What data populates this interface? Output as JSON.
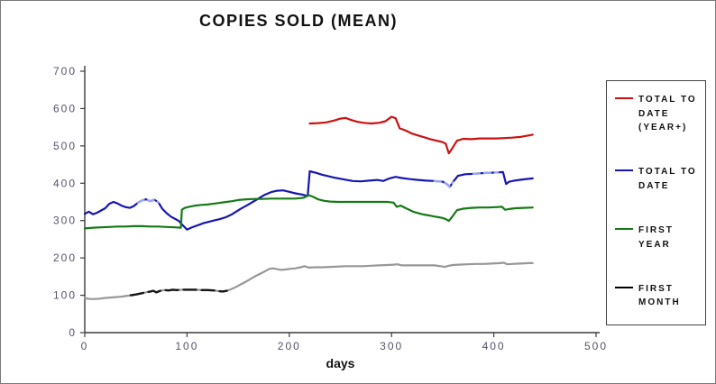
{
  "chart_data": {
    "type": "line",
    "title": "COPIES SOLD (MEAN)",
    "xlabel": "days",
    "ylabel": "",
    "xlim": [
      0,
      500
    ],
    "ylim": [
      0,
      700
    ],
    "xticks": [
      0,
      100,
      200,
      300,
      400,
      500
    ],
    "yticks": [
      0,
      100,
      200,
      300,
      400,
      500,
      600,
      700
    ],
    "grid": false,
    "legend_position": "right",
    "axis_color": "#3c3c3c",
    "tick_label_color": "#53536e",
    "series": [
      {
        "name": "TOTAL TO DATE (YEAR+)",
        "color": "#cc1111",
        "points": [
          [
            220,
            560
          ],
          [
            228,
            561
          ],
          [
            236,
            563
          ],
          [
            244,
            568
          ],
          [
            250,
            573
          ],
          [
            255,
            575
          ],
          [
            260,
            570
          ],
          [
            266,
            565
          ],
          [
            272,
            562
          ],
          [
            280,
            560
          ],
          [
            288,
            562
          ],
          [
            294,
            566
          ],
          [
            300,
            578
          ],
          [
            304,
            574
          ],
          [
            308,
            547
          ],
          [
            314,
            541
          ],
          [
            320,
            533
          ],
          [
            326,
            528
          ],
          [
            332,
            523
          ],
          [
            338,
            518
          ],
          [
            344,
            514
          ],
          [
            350,
            510
          ],
          [
            353,
            506
          ],
          [
            356,
            480
          ],
          [
            359,
            492
          ],
          [
            364,
            514
          ],
          [
            370,
            519
          ],
          [
            378,
            518
          ],
          [
            386,
            520
          ],
          [
            394,
            520
          ],
          [
            402,
            520
          ],
          [
            410,
            521
          ],
          [
            418,
            522
          ],
          [
            426,
            524
          ],
          [
            432,
            527
          ],
          [
            438,
            530
          ]
        ]
      },
      {
        "name": "TOTAL TO DATE",
        "color": "#1616b0",
        "points": [
          [
            0,
            318
          ],
          [
            4,
            324
          ],
          [
            8,
            317
          ],
          [
            12,
            321
          ],
          [
            16,
            327
          ],
          [
            20,
            333
          ],
          [
            24,
            345
          ],
          [
            28,
            350
          ],
          [
            32,
            346
          ],
          [
            36,
            340
          ],
          [
            40,
            336
          ],
          [
            44,
            334
          ],
          [
            48,
            339
          ],
          [
            52,
            348
          ],
          [
            56,
            354
          ],
          [
            60,
            357
          ],
          [
            64,
            352
          ],
          [
            68,
            356
          ],
          [
            72,
            349
          ],
          [
            76,
            331
          ],
          [
            80,
            320
          ],
          [
            84,
            311
          ],
          [
            88,
            305
          ],
          [
            92,
            299
          ],
          [
            96,
            287
          ],
          [
            100,
            276
          ],
          [
            104,
            281
          ],
          [
            108,
            285
          ],
          [
            112,
            289
          ],
          [
            116,
            293
          ],
          [
            120,
            296
          ],
          [
            126,
            300
          ],
          [
            132,
            304
          ],
          [
            138,
            309
          ],
          [
            144,
            317
          ],
          [
            152,
            331
          ],
          [
            160,
            343
          ],
          [
            168,
            356
          ],
          [
            176,
            369
          ],
          [
            182,
            376
          ],
          [
            188,
            380
          ],
          [
            194,
            381
          ],
          [
            200,
            377
          ],
          [
            206,
            373
          ],
          [
            212,
            370
          ],
          [
            218,
            366
          ],
          [
            220,
            432
          ],
          [
            226,
            428
          ],
          [
            232,
            423
          ],
          [
            238,
            419
          ],
          [
            244,
            415
          ],
          [
            250,
            412
          ],
          [
            256,
            409
          ],
          [
            262,
            406
          ],
          [
            270,
            405
          ],
          [
            278,
            407
          ],
          [
            286,
            409
          ],
          [
            292,
            406
          ],
          [
            298,
            413
          ],
          [
            304,
            417
          ],
          [
            310,
            414
          ],
          [
            318,
            411
          ],
          [
            326,
            409
          ],
          [
            334,
            407
          ],
          [
            342,
            406
          ],
          [
            350,
            404
          ],
          [
            354,
            398
          ],
          [
            357,
            390
          ],
          [
            360,
            403
          ],
          [
            365,
            420
          ],
          [
            372,
            424
          ],
          [
            380,
            425
          ],
          [
            388,
            427
          ],
          [
            396,
            428
          ],
          [
            404,
            429
          ],
          [
            409,
            430
          ],
          [
            412,
            398
          ],
          [
            415,
            404
          ],
          [
            420,
            407
          ],
          [
            428,
            410
          ],
          [
            438,
            413
          ]
        ],
        "overlays": [
          {
            "from": 50,
            "to": 74,
            "color": "#97a6ea",
            "dash": "7 5"
          },
          {
            "from": 336,
            "to": 360,
            "color": "#97a6ea",
            "dash": "7 5"
          },
          {
            "from": 380,
            "to": 406,
            "color": "#97a6ea",
            "dash": "7 5"
          }
        ]
      },
      {
        "name": "FIRST YEAR",
        "color": "#167a16",
        "points": [
          [
            0,
            279
          ],
          [
            8,
            281
          ],
          [
            16,
            282
          ],
          [
            24,
            283
          ],
          [
            32,
            284
          ],
          [
            40,
            284
          ],
          [
            48,
            285
          ],
          [
            56,
            285
          ],
          [
            64,
            284
          ],
          [
            72,
            284
          ],
          [
            80,
            283
          ],
          [
            88,
            282
          ],
          [
            94,
            281
          ],
          [
            95,
            329
          ],
          [
            98,
            334
          ],
          [
            102,
            337
          ],
          [
            108,
            340
          ],
          [
            114,
            342
          ],
          [
            120,
            343
          ],
          [
            128,
            346
          ],
          [
            136,
            349
          ],
          [
            144,
            352
          ],
          [
            150,
            355
          ],
          [
            158,
            357
          ],
          [
            166,
            358
          ],
          [
            174,
            358
          ],
          [
            182,
            359
          ],
          [
            190,
            359
          ],
          [
            198,
            359
          ],
          [
            206,
            359
          ],
          [
            214,
            361
          ],
          [
            219,
            368
          ],
          [
            224,
            363
          ],
          [
            228,
            357
          ],
          [
            234,
            353
          ],
          [
            240,
            351
          ],
          [
            248,
            350
          ],
          [
            256,
            350
          ],
          [
            264,
            350
          ],
          [
            272,
            350
          ],
          [
            280,
            350
          ],
          [
            288,
            350
          ],
          [
            296,
            350
          ],
          [
            302,
            348
          ],
          [
            305,
            337
          ],
          [
            309,
            340
          ],
          [
            314,
            333
          ],
          [
            318,
            328
          ],
          [
            322,
            323
          ],
          [
            326,
            320
          ],
          [
            330,
            317
          ],
          [
            334,
            315
          ],
          [
            338,
            313
          ],
          [
            342,
            311
          ],
          [
            346,
            309
          ],
          [
            350,
            307
          ],
          [
            353,
            304
          ],
          [
            356,
            299
          ],
          [
            359,
            309
          ],
          [
            364,
            328
          ],
          [
            370,
            332
          ],
          [
            378,
            334
          ],
          [
            386,
            335
          ],
          [
            394,
            335
          ],
          [
            402,
            336
          ],
          [
            408,
            337
          ],
          [
            411,
            329
          ],
          [
            415,
            331
          ],
          [
            421,
            333
          ],
          [
            429,
            334
          ],
          [
            438,
            335
          ]
        ]
      },
      {
        "name": "FIRST MONTH",
        "color": "#979797",
        "legend_color": "#000000",
        "points": [
          [
            0,
            92
          ],
          [
            5,
            90
          ],
          [
            10,
            90
          ],
          [
            15,
            91
          ],
          [
            20,
            93
          ],
          [
            25,
            94
          ],
          [
            30,
            95
          ],
          [
            35,
            96
          ],
          [
            40,
            98
          ],
          [
            45,
            100
          ],
          [
            50,
            102
          ],
          [
            55,
            105
          ],
          [
            60,
            108
          ],
          [
            64,
            110
          ],
          [
            67,
            112
          ],
          [
            70,
            108
          ],
          [
            74,
            112
          ],
          [
            78,
            114
          ],
          [
            82,
            113
          ],
          [
            86,
            115
          ],
          [
            90,
            114
          ],
          [
            96,
            115
          ],
          [
            102,
            115
          ],
          [
            108,
            115
          ],
          [
            114,
            114
          ],
          [
            120,
            114
          ],
          [
            126,
            113
          ],
          [
            131,
            111
          ],
          [
            135,
            110
          ],
          [
            139,
            112
          ],
          [
            143,
            116
          ],
          [
            147,
            121
          ],
          [
            151,
            127
          ],
          [
            156,
            134
          ],
          [
            161,
            142
          ],
          [
            166,
            150
          ],
          [
            171,
            157
          ],
          [
            176,
            164
          ],
          [
            180,
            170
          ],
          [
            184,
            172
          ],
          [
            188,
            170
          ],
          [
            192,
            168
          ],
          [
            196,
            169
          ],
          [
            201,
            171
          ],
          [
            206,
            172
          ],
          [
            211,
            175
          ],
          [
            215,
            178
          ],
          [
            219,
            174
          ],
          [
            225,
            175
          ],
          [
            232,
            175
          ],
          [
            240,
            176
          ],
          [
            248,
            177
          ],
          [
            256,
            178
          ],
          [
            264,
            178
          ],
          [
            272,
            178
          ],
          [
            280,
            179
          ],
          [
            288,
            180
          ],
          [
            296,
            181
          ],
          [
            302,
            182
          ],
          [
            306,
            183
          ],
          [
            310,
            180
          ],
          [
            318,
            180
          ],
          [
            326,
            180
          ],
          [
            334,
            180
          ],
          [
            342,
            180
          ],
          [
            348,
            178
          ],
          [
            352,
            176
          ],
          [
            356,
            179
          ],
          [
            360,
            181
          ],
          [
            366,
            182
          ],
          [
            374,
            183
          ],
          [
            382,
            184
          ],
          [
            390,
            184
          ],
          [
            398,
            185
          ],
          [
            406,
            186
          ],
          [
            410,
            187
          ],
          [
            413,
            183
          ],
          [
            418,
            184
          ],
          [
            426,
            185
          ],
          [
            434,
            186
          ],
          [
            438,
            186
          ]
        ],
        "overlays": [
          {
            "from": 42,
            "to": 141,
            "color": "#151515",
            "dash": "14 6"
          }
        ]
      }
    ]
  }
}
